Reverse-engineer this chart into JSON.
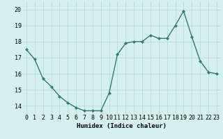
{
  "x": [
    0,
    1,
    2,
    3,
    4,
    5,
    6,
    7,
    8,
    9,
    10,
    11,
    12,
    13,
    14,
    15,
    16,
    17,
    18,
    19,
    20,
    21,
    22,
    23
  ],
  "y": [
    17.5,
    16.9,
    15.7,
    15.2,
    14.6,
    14.2,
    13.9,
    13.7,
    13.7,
    13.7,
    14.8,
    17.2,
    17.9,
    18.0,
    18.0,
    18.4,
    18.2,
    18.2,
    19.0,
    19.9,
    18.3,
    16.8,
    16.1,
    16.0
  ],
  "line_color": "#2e7d6e",
  "marker": "D",
  "marker_size": 2,
  "bg_color": "#d6f0ef",
  "grid_color": "#b0d8d4",
  "xlabel": "Humidex (Indice chaleur)",
  "xlim": [
    -0.5,
    23.5
  ],
  "ylim": [
    13.5,
    20.5
  ],
  "yticks": [
    14,
    15,
    16,
    17,
    18,
    19,
    20
  ],
  "xticks": [
    0,
    1,
    2,
    3,
    4,
    5,
    6,
    7,
    8,
    9,
    10,
    11,
    12,
    13,
    14,
    15,
    16,
    17,
    18,
    19,
    20,
    21,
    22,
    23
  ],
  "label_fontsize": 6.5,
  "tick_fontsize": 6.0,
  "linewidth": 1.0
}
